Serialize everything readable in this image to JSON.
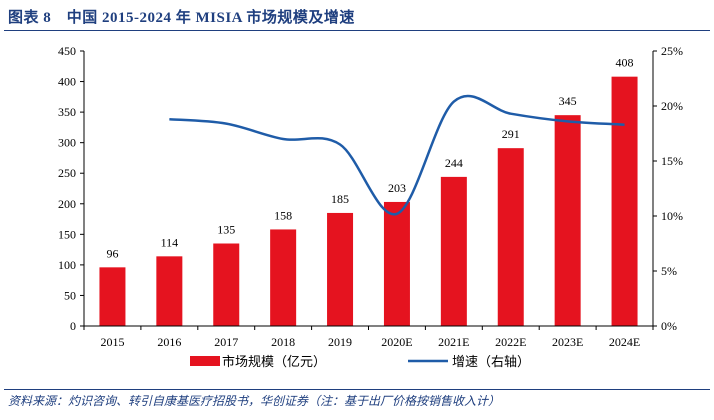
{
  "title": "图表 8　中国 2015-2024 年 MISIA 市场规模及增速",
  "source": "资料来源：灼识咨询、转引自康基医疗招股书，华创证券（注：基于出厂价格按销售收入计）",
  "colors": {
    "bar": "#e5131f",
    "line": "#1f5ca8",
    "title": "#1f3f7f"
  },
  "chart_data": {
    "type": "bar",
    "categories": [
      "2015",
      "2016",
      "2017",
      "2018",
      "2019",
      "2020E",
      "2021E",
      "2022E",
      "2023E",
      "2024E"
    ],
    "series": [
      {
        "name": "市场规模（亿元）",
        "type": "bar",
        "axis": "left",
        "values": [
          96,
          114,
          135,
          158,
          185,
          203,
          244,
          291,
          345,
          408
        ]
      },
      {
        "name": "增速（右轴）",
        "type": "line",
        "axis": "right",
        "values": [
          null,
          18.8,
          18.4,
          17.0,
          16.5,
          10.2,
          20.4,
          19.3,
          18.6,
          18.3
        ]
      }
    ],
    "left_axis": {
      "min": 0,
      "max": 450,
      "step": 50,
      "ticks": [
        "0",
        "50",
        "100",
        "150",
        "200",
        "250",
        "300",
        "350",
        "400",
        "450"
      ]
    },
    "right_axis": {
      "min": 0,
      "max": 25,
      "step": 5,
      "ticks": [
        "0%",
        "5%",
        "10%",
        "15%",
        "20%",
        "25%"
      ]
    },
    "data_labels": [
      "96",
      "114",
      "135",
      "158",
      "185",
      "203",
      "244",
      "291",
      "345",
      "408"
    ],
    "legend": {
      "position": "bottom",
      "bar_label": "市场规模（亿元）",
      "line_label": "增速（右轴）"
    }
  }
}
